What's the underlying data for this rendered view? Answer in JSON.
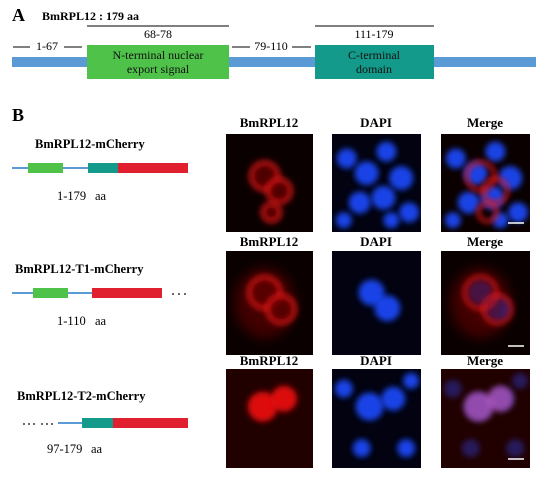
{
  "panel_a": {
    "label": "A",
    "title": "BmRPL12 : 179 aa",
    "segments": [
      {
        "range": "1-67"
      },
      {
        "range": "68-78",
        "text": [
          "N-terminal nuclear",
          "export signal"
        ]
      },
      {
        "range": "79-110"
      },
      {
        "range": "111-179",
        "text": [
          "C-terminal",
          "domain"
        ]
      }
    ]
  },
  "panel_b": {
    "label": "B",
    "rows": [
      {
        "construct": "BmRPL12-mCherry",
        "range": "1-179",
        "unit": "aa",
        "headers": [
          "BmRPL12",
          "DAPI",
          "Merge"
        ]
      },
      {
        "construct": "BmRPL12-T1-mCherry",
        "range": "1-110",
        "unit": "aa",
        "headers": [
          "BmRPL12",
          "DAPI",
          "Merge"
        ]
      },
      {
        "construct": "BmRPL12-T2-mCherry",
        "range": "97-179",
        "unit": "aa",
        "headers": [
          "BmRPL12",
          "DAPI",
          "Merge"
        ]
      }
    ]
  }
}
